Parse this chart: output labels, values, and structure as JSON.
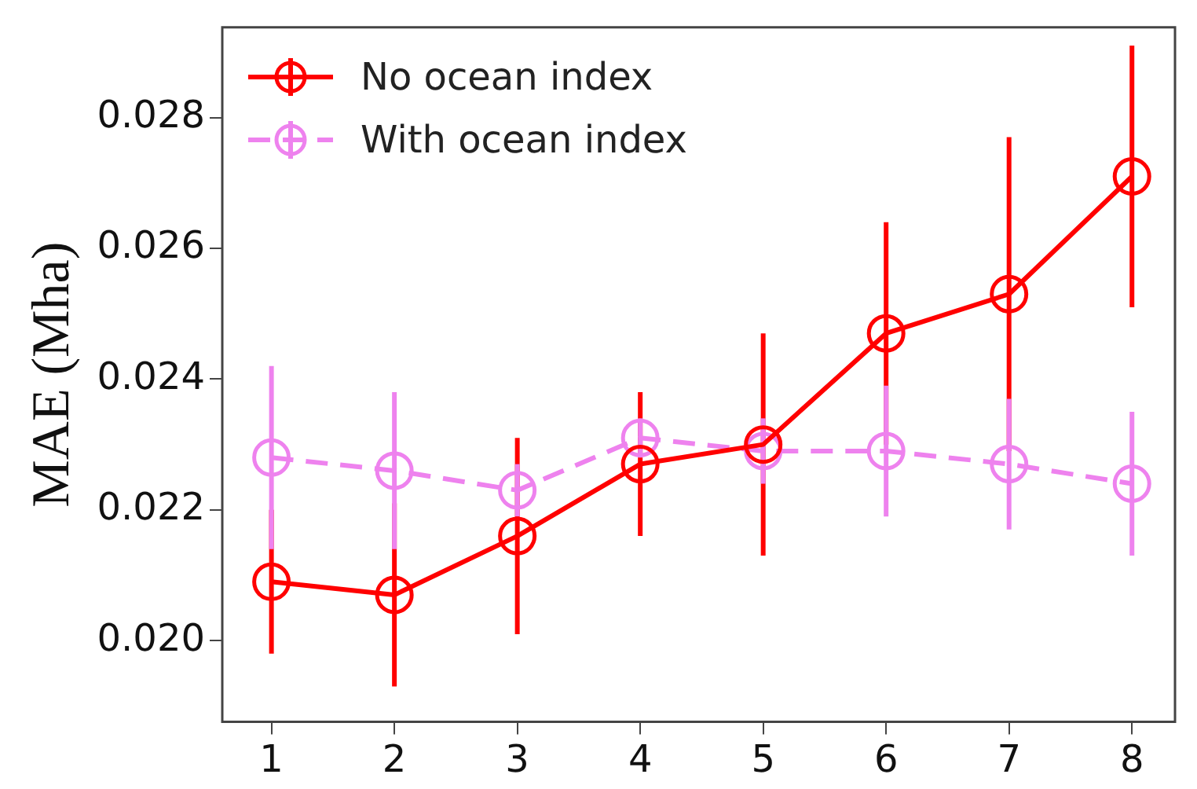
{
  "chart_data": {
    "type": "line",
    "ylabel": "MAE (Mha)",
    "x": [
      1,
      2,
      3,
      4,
      5,
      6,
      7,
      8
    ],
    "xlim": [
      0.6,
      8.35
    ],
    "xticks": [
      1,
      2,
      3,
      4,
      5,
      6,
      7,
      8
    ],
    "ylim": [
      0.01876,
      0.02938
    ],
    "yticks": [
      {
        "value": 0.02,
        "label": "0.020"
      },
      0.022,
      0.024,
      0.026,
      0.028
    ],
    "grid": false,
    "legend": "top left",
    "marker": "circle",
    "series": [
      {
        "name": "No ocean index",
        "color": "#ff0000",
        "line_style": "solid",
        "values": [
          0.0209,
          0.0207,
          0.0216,
          0.0227,
          0.023,
          0.0247,
          0.0253,
          0.0271
        ],
        "errors": [
          0.0011,
          0.0014,
          0.0015,
          0.0011,
          0.0017,
          0.0017,
          0.0024,
          0.002
        ]
      },
      {
        "name": "With ocean index",
        "color": "#ee82ee",
        "line_style": "dashed",
        "values": [
          0.0228,
          0.0226,
          0.0223,
          0.0231,
          0.0229,
          0.0229,
          0.0227,
          0.0224
        ],
        "errors": [
          0.0014,
          0.0012,
          0.0004,
          0.0003,
          0.0005,
          0.001,
          0.001,
          0.0011
        ]
      }
    ]
  }
}
